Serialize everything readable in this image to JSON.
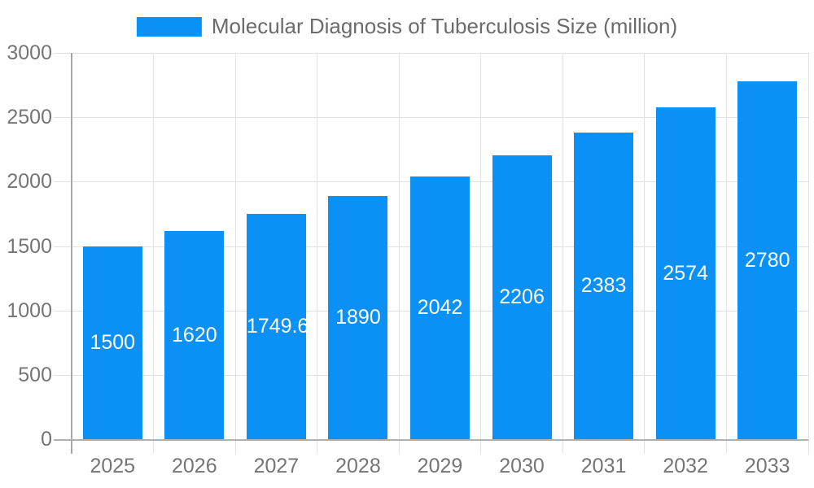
{
  "legend": {
    "label": "Molecular Diagnosis of Tuberculosis Size (million)",
    "swatch_color": "#0b90f5"
  },
  "chart_data": {
    "type": "bar",
    "title": "Molecular Diagnosis of Tuberculosis Size (million)",
    "series_name": "Molecular Diagnosis of Tuberculosis Size (million)",
    "categories": [
      "2025",
      "2026",
      "2027",
      "2028",
      "2029",
      "2030",
      "2031",
      "2032",
      "2033"
    ],
    "values": [
      1500,
      1620,
      1749.6,
      1890,
      2042,
      2206,
      2383,
      2574,
      2780
    ],
    "data_labels": [
      "1500",
      "1620",
      "1749.6",
      "1890",
      "2042",
      "2206",
      "2383",
      "2574",
      "2780"
    ],
    "xlabel": "",
    "ylabel": "",
    "ylim": [
      0,
      3000
    ],
    "yticks": [
      0,
      500,
      1000,
      1500,
      2000,
      2500,
      3000
    ],
    "grid": true,
    "legend_position": "top",
    "bar_color": "#0b90f5",
    "data_label_color": "#ffffff",
    "axis_text_color": "#757575",
    "gridline_color": "#e2e2e2",
    "axis_line_color": "#a8a8a8",
    "background_color": "#ffffff"
  }
}
